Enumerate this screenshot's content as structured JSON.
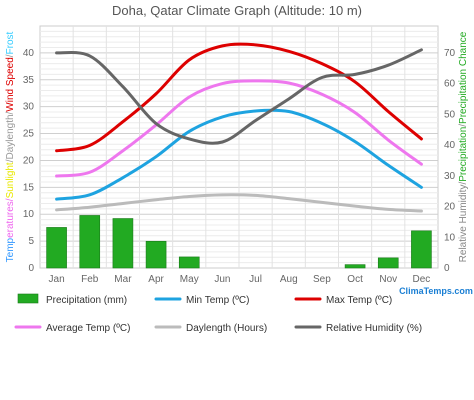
{
  "chart_data": {
    "type": "bar+line",
    "title": "Doha, Qatar Climate Graph (Altitude: 10 m)",
    "categories": [
      "Jan",
      "Feb",
      "Mar",
      "Apr",
      "May",
      "Jun",
      "Jul",
      "Aug",
      "Sep",
      "Oct",
      "Nov",
      "Dec"
    ],
    "left_axis": {
      "ylim": [
        0,
        45
      ],
      "ticks": [
        0,
        5,
        10,
        15,
        20,
        25,
        30,
        35,
        40
      ],
      "label_parts": [
        {
          "text": "Temp",
          "color": "#3399ff"
        },
        {
          "text": "eratures/",
          "color": "#ee66ee"
        },
        {
          "text": "Sunlight",
          "color": "#e8e800"
        },
        {
          "text": "/",
          "color": "#999999"
        },
        {
          "text": "Daylength",
          "color": "#999999"
        },
        {
          "text": "/",
          "color": "#999999"
        },
        {
          "text": "Wind Speed",
          "color": "#dd0000"
        },
        {
          "text": "/",
          "color": "#999999"
        },
        {
          "text": "Frost",
          "color": "#33ccff"
        }
      ]
    },
    "right_axis": {
      "ylim": [
        0,
        78.75
      ],
      "ticks": [
        0,
        10,
        20,
        30,
        40,
        50,
        60,
        70
      ],
      "label_parts": [
        {
          "text": "Relative Humidity/",
          "color": "#888888"
        },
        {
          "text": "Precipitation",
          "color": "#22aa22"
        },
        {
          "text": "/",
          "color": "#888888"
        },
        {
          "text": "Precipitation Chance",
          "color": "#22aa22"
        }
      ]
    },
    "series": [
      {
        "name": "Precipitation (mm)",
        "type": "bar",
        "axis": "right",
        "color": "#22aa22",
        "values": [
          13.2,
          17.1,
          16.1,
          8.7,
          3.6,
          0,
          0,
          0,
          0,
          1.1,
          3.3,
          12.1
        ]
      },
      {
        "name": "Min Temp (ºC)",
        "type": "line",
        "axis": "left",
        "color": "#1ea3e0",
        "values": [
          12.8,
          13.6,
          16.8,
          20.7,
          25.4,
          28.1,
          29.2,
          29.1,
          26.9,
          23.5,
          19.1,
          15.0
        ]
      },
      {
        "name": "Max Temp (ºC)",
        "type": "line",
        "axis": "left",
        "color": "#dd0000",
        "values": [
          21.8,
          22.8,
          27.2,
          32.4,
          38.7,
          41.3,
          41.5,
          40.3,
          38.0,
          34.6,
          29.1,
          24.0
        ]
      },
      {
        "name": "Average Temp (ºC)",
        "type": "line",
        "axis": "left",
        "color": "#ee77ee",
        "values": [
          17.1,
          17.8,
          21.8,
          26.6,
          31.8,
          34.3,
          34.8,
          34.4,
          32.3,
          28.9,
          23.8,
          19.3
        ]
      },
      {
        "name": "Daylength (Hours)",
        "type": "line",
        "axis": "left",
        "color": "#bbbbbb",
        "values": [
          10.8,
          11.3,
          12.0,
          12.7,
          13.3,
          13.6,
          13.5,
          12.9,
          12.2,
          11.5,
          10.9,
          10.6
        ]
      },
      {
        "name": "Relative Humidity (%)",
        "type": "line",
        "axis": "right",
        "color": "#666666",
        "values": [
          70,
          69,
          59,
          47,
          42,
          41,
          48,
          55,
          62,
          63,
          66,
          71
        ]
      }
    ],
    "grid": true,
    "legend_position": "bottom"
  },
  "brand": {
    "text": "ClimaTemps.com",
    "color": "#1a7fd4"
  }
}
